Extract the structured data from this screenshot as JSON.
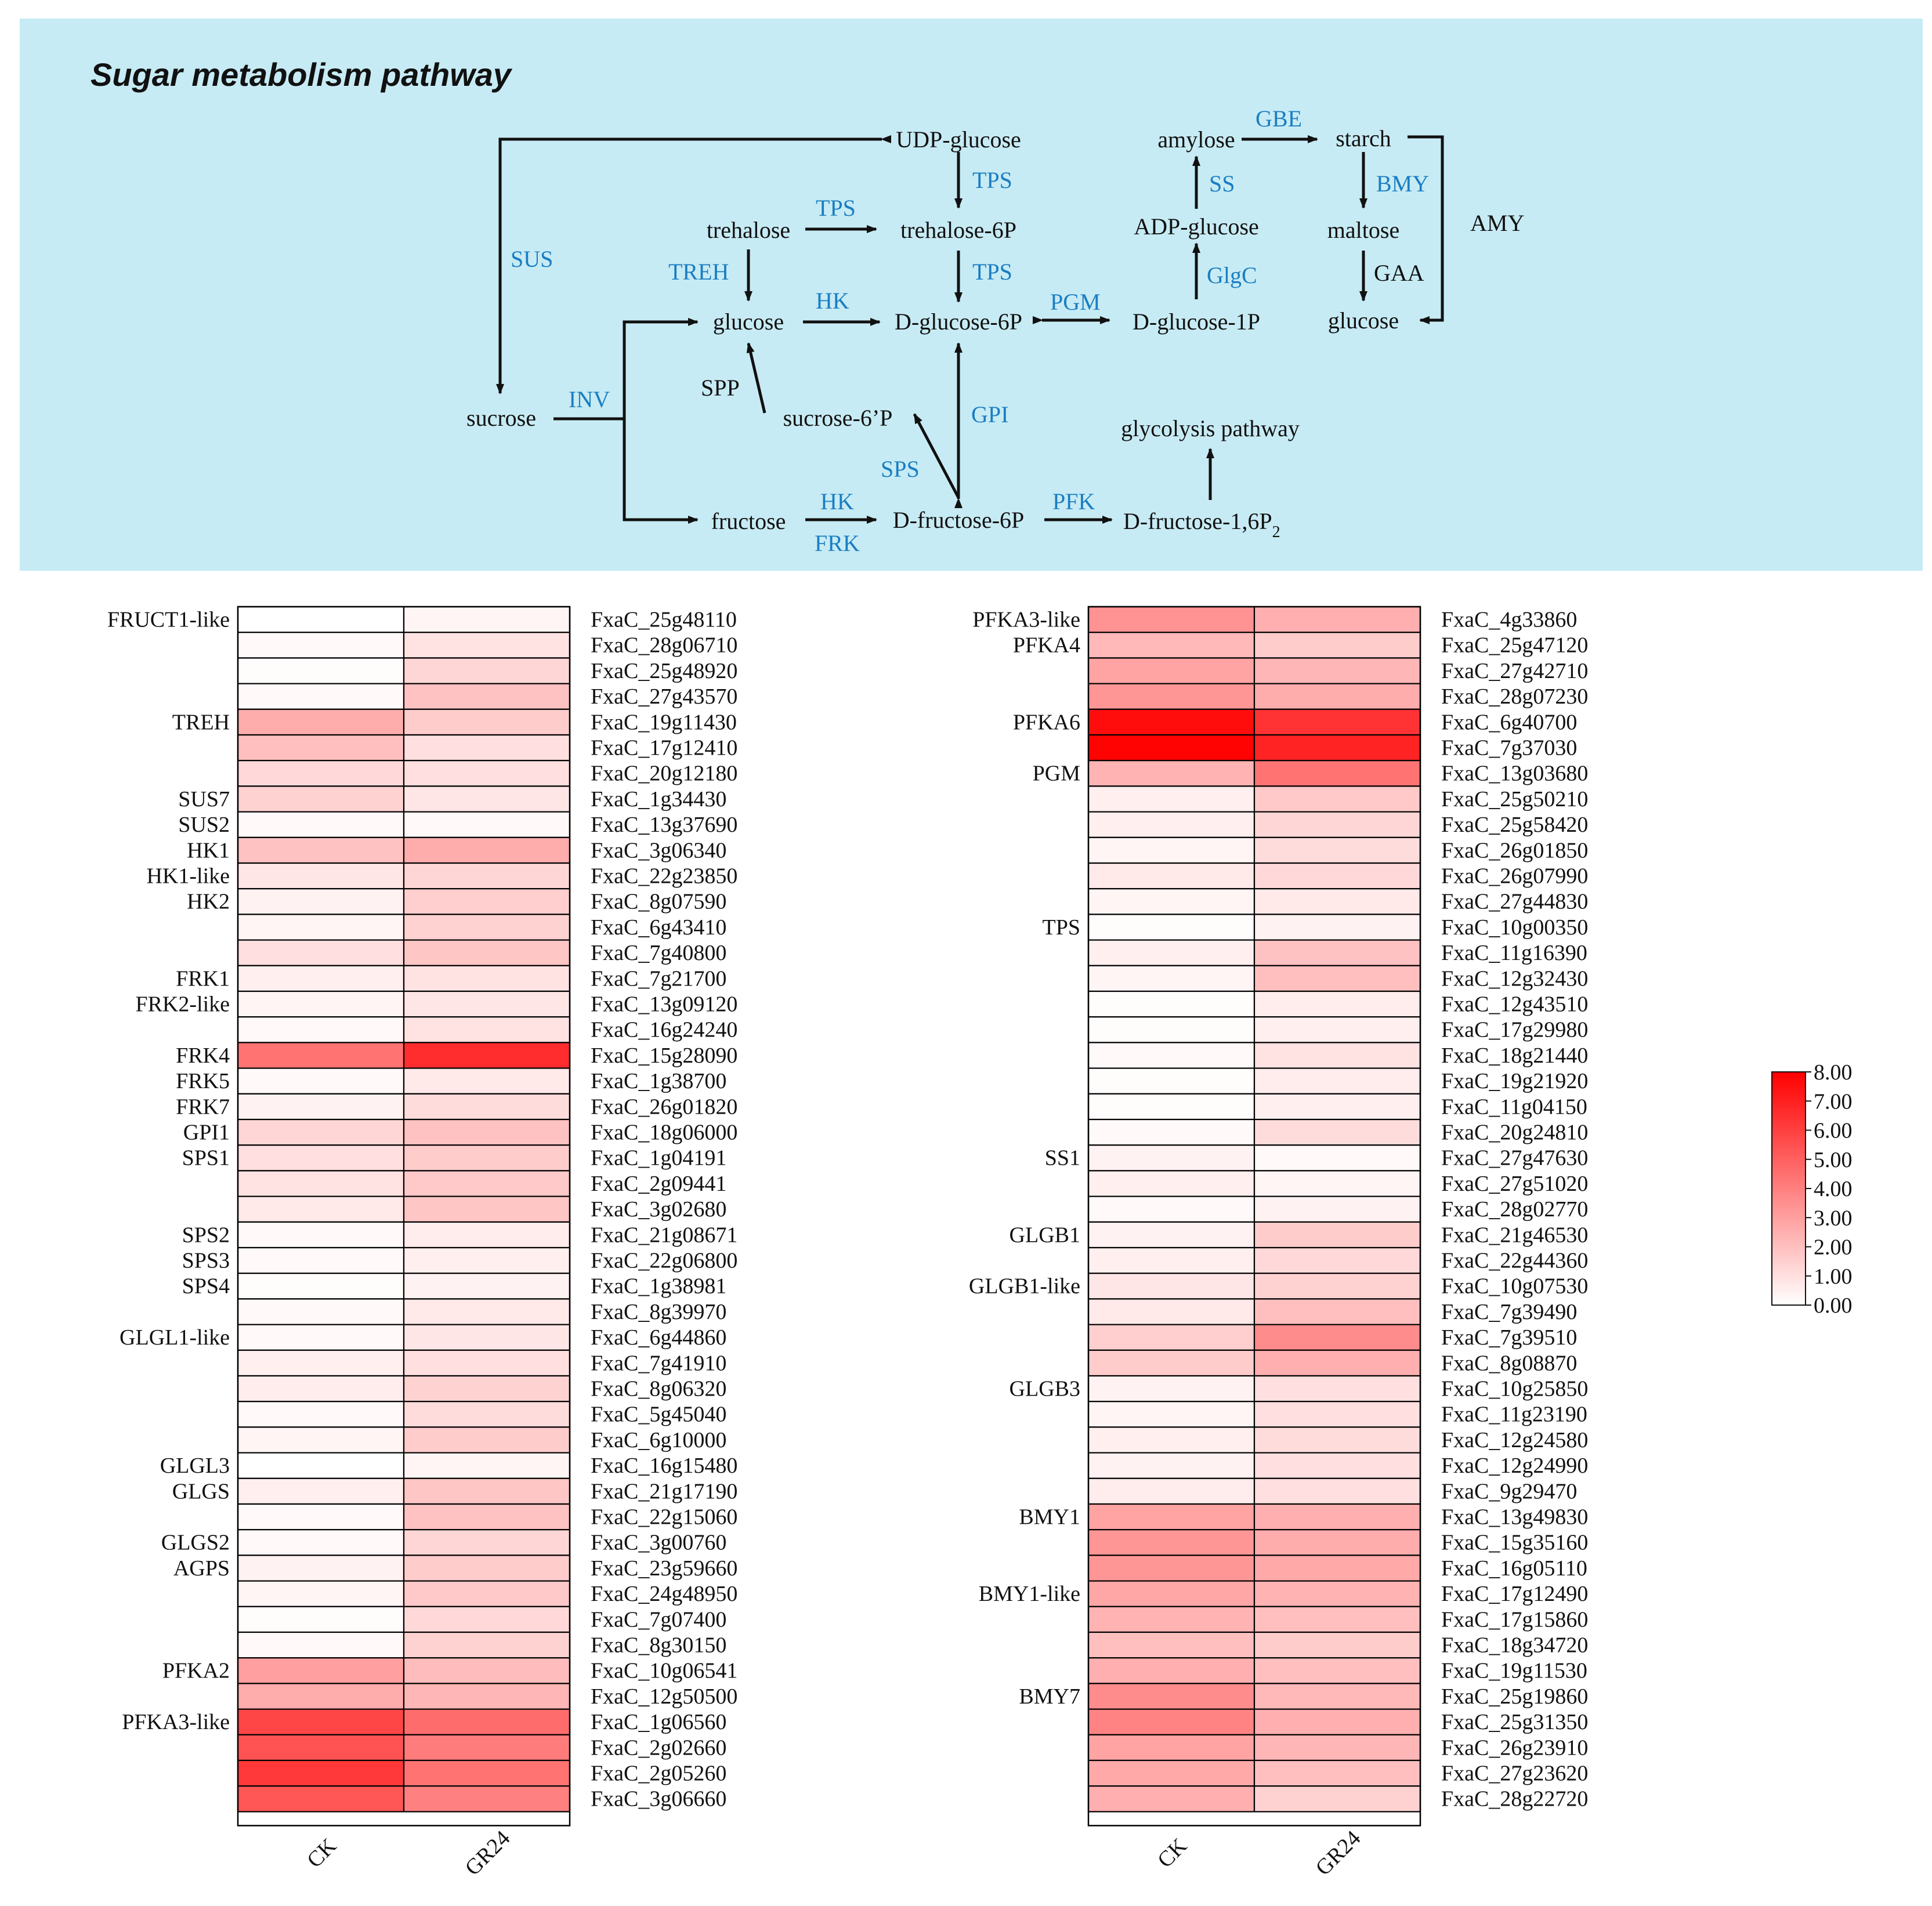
{
  "pathway": {
    "title": "Sugar metabolism pathway",
    "background": "#c7ebf4",
    "nodes": {
      "udp_glucose": "UDP-glucose",
      "trehalose": "trehalose",
      "trehalose_6p": "trehalose-6P",
      "glucose": "glucose",
      "d_glucose_6p": "D-glucose-6P",
      "d_glucose_1p": "D-glucose-1P",
      "adp_glucose": "ADP-glucose",
      "amylose": "amylose",
      "starch": "starch",
      "maltose": "maltose",
      "glucose2": "glucose",
      "sucrose": "sucrose",
      "sucrose_6p": "sucrose-6’P",
      "fructose": "fructose",
      "d_fructose_6p": "D-fructose-6P",
      "d_fructose_16p2": "D-fructose-1,6P",
      "d_fructose_16p2_sub": "2",
      "glycolysis": "glycolysis pathway"
    },
    "enzymes": {
      "sus": "SUS",
      "tps1": "TPS",
      "tps2": "TPS",
      "tps3": "TPS",
      "treh": "TREH",
      "hk1": "HK",
      "pgm": "PGM",
      "glgc": "GlgC",
      "ss": "SS",
      "gbe": "GBE",
      "bmy": "BMY",
      "inv": "INV",
      "gpi": "GPI",
      "sps": "SPS",
      "hk2": "HK",
      "frk": "FRK",
      "pfk": "PFK"
    },
    "other_labels": {
      "spp": "SPP",
      "gaa": "GAA",
      "amy": "AMY"
    }
  },
  "heatmap": {
    "columns": [
      "CK",
      "GR24"
    ],
    "color_min": "#ffffff",
    "color_max": "#ff0000",
    "scale": {
      "min": 0,
      "max": 8,
      "ticks": [
        "8.00",
        "7.00",
        "6.00",
        "5.00",
        "4.00",
        "3.00",
        "2.00",
        "1.00",
        "0.00"
      ]
    },
    "left": [
      {
        "group": "FRUCT1-like",
        "gene": "FxaC_25g48110",
        "values": [
          0.0,
          0.3
        ]
      },
      {
        "group": "",
        "gene": "FxaC_28g06710",
        "values": [
          0.2,
          0.9
        ]
      },
      {
        "group": "",
        "gene": "FxaC_25g48920",
        "values": [
          0.1,
          1.3
        ]
      },
      {
        "group": "",
        "gene": "FxaC_27g43570",
        "values": [
          0.2,
          1.9
        ]
      },
      {
        "group": "TREH",
        "gene": "FxaC_19g11430",
        "values": [
          2.6,
          1.6
        ]
      },
      {
        "group": "",
        "gene": "FxaC_17g12410",
        "values": [
          2.0,
          1.0
        ]
      },
      {
        "group": "",
        "gene": "FxaC_20g12180",
        "values": [
          1.2,
          1.0
        ]
      },
      {
        "group": "SUS7",
        "gene": "FxaC_1g34430",
        "values": [
          1.4,
          0.8
        ]
      },
      {
        "group": "SUS2",
        "gene": "FxaC_13g37690",
        "values": [
          0.2,
          0.2
        ]
      },
      {
        "group": "HK1",
        "gene": "FxaC_3g06340",
        "values": [
          1.9,
          2.6
        ]
      },
      {
        "group": "HK1-like",
        "gene": "FxaC_22g23850",
        "values": [
          0.8,
          1.3
        ]
      },
      {
        "group": "HK2",
        "gene": "FxaC_8g07590",
        "values": [
          0.4,
          1.5
        ]
      },
      {
        "group": "",
        "gene": "FxaC_6g43410",
        "values": [
          0.3,
          1.4
        ]
      },
      {
        "group": "",
        "gene": "FxaC_7g40800",
        "values": [
          1.0,
          1.8
        ]
      },
      {
        "group": "FRK1",
        "gene": "FxaC_7g21700",
        "values": [
          0.5,
          0.9
        ]
      },
      {
        "group": "FRK2-like",
        "gene": "FxaC_13g09120",
        "values": [
          0.3,
          0.8
        ]
      },
      {
        "group": "",
        "gene": "FxaC_16g24240",
        "values": [
          0.2,
          0.9
        ]
      },
      {
        "group": "FRK4",
        "gene": "FxaC_15g28090",
        "values": [
          4.4,
          6.6
        ]
      },
      {
        "group": "FRK5",
        "gene": "FxaC_1g38700",
        "values": [
          0.2,
          0.7
        ]
      },
      {
        "group": "FRK7",
        "gene": "FxaC_26g01820",
        "values": [
          0.4,
          1.1
        ]
      },
      {
        "group": "GPI1",
        "gene": "FxaC_18g06000",
        "values": [
          1.3,
          1.9
        ]
      },
      {
        "group": "SPS1",
        "gene": "FxaC_1g04191",
        "values": [
          1.0,
          1.6
        ]
      },
      {
        "group": "",
        "gene": "FxaC_2g09441",
        "values": [
          0.9,
          1.7
        ]
      },
      {
        "group": "",
        "gene": "FxaC_3g02680",
        "values": [
          0.7,
          1.8
        ]
      },
      {
        "group": "SPS2",
        "gene": "FxaC_21g08671",
        "values": [
          0.2,
          0.6
        ]
      },
      {
        "group": "SPS3",
        "gene": "FxaC_22g06800",
        "values": [
          0.2,
          0.5
        ]
      },
      {
        "group": "SPS4",
        "gene": "FxaC_1g38981",
        "values": [
          0.1,
          0.4
        ]
      },
      {
        "group": "",
        "gene": "FxaC_8g39970",
        "values": [
          0.2,
          0.7
        ]
      },
      {
        "group": "GLGL1-like",
        "gene": "FxaC_6g44860",
        "values": [
          0.2,
          0.8
        ]
      },
      {
        "group": "",
        "gene": "FxaC_7g41910",
        "values": [
          0.5,
          1.0
        ]
      },
      {
        "group": "",
        "gene": "FxaC_8g06320",
        "values": [
          0.6,
          1.4
        ]
      },
      {
        "group": "",
        "gene": "FxaC_5g45040",
        "values": [
          0.2,
          1.1
        ]
      },
      {
        "group": "",
        "gene": "FxaC_6g10000",
        "values": [
          0.3,
          1.6
        ]
      },
      {
        "group": "GLGL3",
        "gene": "FxaC_16g15480",
        "values": [
          0.0,
          0.3
        ]
      },
      {
        "group": "GLGS",
        "gene": "FxaC_21g17190",
        "values": [
          0.5,
          1.8
        ]
      },
      {
        "group": "",
        "gene": "FxaC_22g15060",
        "values": [
          0.2,
          1.9
        ]
      },
      {
        "group": "GLGS2",
        "gene": "FxaC_3g00760",
        "values": [
          0.2,
          1.3
        ]
      },
      {
        "group": "AGPS",
        "gene": "FxaC_23g59660",
        "values": [
          0.4,
          1.6
        ]
      },
      {
        "group": "",
        "gene": "FxaC_24g48950",
        "values": [
          0.3,
          1.7
        ]
      },
      {
        "group": "",
        "gene": "FxaC_7g07400",
        "values": [
          0.1,
          1.2
        ]
      },
      {
        "group": "",
        "gene": "FxaC_8g30150",
        "values": [
          0.2,
          1.4
        ]
      },
      {
        "group": "PFKA2",
        "gene": "FxaC_10g06541",
        "values": [
          3.0,
          2.1
        ]
      },
      {
        "group": "",
        "gene": "FxaC_12g50500",
        "values": [
          2.6,
          2.3
        ]
      },
      {
        "group": "PFKA3-like",
        "gene": "FxaC_1g06560",
        "values": [
          5.8,
          4.6
        ]
      },
      {
        "group": "",
        "gene": "FxaC_2g02660",
        "values": [
          5.4,
          4.1
        ]
      },
      {
        "group": "",
        "gene": "FxaC_2g05260",
        "values": [
          6.2,
          4.4
        ]
      },
      {
        "group": "",
        "gene": "FxaC_3g06660",
        "values": [
          5.3,
          4.0
        ]
      }
    ],
    "right": [
      {
        "group": "PFKA3-like",
        "gene": "FxaC_4g33860",
        "values": [
          3.4,
          2.5
        ]
      },
      {
        "group": "PFKA4",
        "gene": "FxaC_25g47120",
        "values": [
          2.2,
          1.6
        ]
      },
      {
        "group": "",
        "gene": "FxaC_27g42710",
        "values": [
          2.9,
          2.3
        ]
      },
      {
        "group": "",
        "gene": "FxaC_28g07230",
        "values": [
          3.3,
          2.6
        ]
      },
      {
        "group": "PFKA6",
        "gene": "FxaC_6g40700",
        "values": [
          7.6,
          6.4
        ]
      },
      {
        "group": "",
        "gene": "FxaC_7g37030",
        "values": [
          7.9,
          6.9
        ]
      },
      {
        "group": "PGM",
        "gene": "FxaC_13g03680",
        "values": [
          2.4,
          4.4
        ]
      },
      {
        "group": "",
        "gene": "FxaC_25g50210",
        "values": [
          0.5,
          1.7
        ]
      },
      {
        "group": "",
        "gene": "FxaC_25g58420",
        "values": [
          0.5,
          1.3
        ]
      },
      {
        "group": "",
        "gene": "FxaC_26g01850",
        "values": [
          0.3,
          1.1
        ]
      },
      {
        "group": "",
        "gene": "FxaC_26g07990",
        "values": [
          0.7,
          1.2
        ]
      },
      {
        "group": "",
        "gene": "FxaC_27g44830",
        "values": [
          0.3,
          0.7
        ]
      },
      {
        "group": "TPS",
        "gene": "FxaC_10g00350",
        "values": [
          0.1,
          0.4
        ]
      },
      {
        "group": "",
        "gene": "FxaC_11g16390",
        "values": [
          0.5,
          1.9
        ]
      },
      {
        "group": "",
        "gene": "FxaC_12g32430",
        "values": [
          0.3,
          2.0
        ]
      },
      {
        "group": "",
        "gene": "FxaC_12g43510",
        "values": [
          0.1,
          0.6
        ]
      },
      {
        "group": "",
        "gene": "FxaC_17g29980",
        "values": [
          0.1,
          0.5
        ]
      },
      {
        "group": "",
        "gene": "FxaC_18g21440",
        "values": [
          0.2,
          0.9
        ]
      },
      {
        "group": "",
        "gene": "FxaC_19g21920",
        "values": [
          0.1,
          0.6
        ]
      },
      {
        "group": "",
        "gene": "FxaC_11g04150",
        "values": [
          0.1,
          0.5
        ]
      },
      {
        "group": "",
        "gene": "FxaC_20g24810",
        "values": [
          0.2,
          1.1
        ]
      },
      {
        "group": "SS1",
        "gene": "FxaC_27g47630",
        "values": [
          0.4,
          0.2
        ]
      },
      {
        "group": "",
        "gene": "FxaC_27g51020",
        "values": [
          0.5,
          0.3
        ]
      },
      {
        "group": "",
        "gene": "FxaC_28g02770",
        "values": [
          0.2,
          0.4
        ]
      },
      {
        "group": "GLGB1",
        "gene": "FxaC_21g46530",
        "values": [
          0.4,
          1.6
        ]
      },
      {
        "group": "",
        "gene": "FxaC_22g44360",
        "values": [
          0.5,
          1.2
        ]
      },
      {
        "group": "GLGB1-like",
        "gene": "FxaC_10g07530",
        "values": [
          0.8,
          1.4
        ]
      },
      {
        "group": "",
        "gene": "FxaC_7g39490",
        "values": [
          0.7,
          2.0
        ]
      },
      {
        "group": "",
        "gene": "FxaC_7g39510",
        "values": [
          1.5,
          3.6
        ]
      },
      {
        "group": "",
        "gene": "FxaC_8g08870",
        "values": [
          1.6,
          2.5
        ]
      },
      {
        "group": "GLGB3",
        "gene": "FxaC_10g25850",
        "values": [
          0.4,
          1.0
        ]
      },
      {
        "group": "",
        "gene": "FxaC_11g23190",
        "values": [
          0.3,
          1.0
        ]
      },
      {
        "group": "",
        "gene": "FxaC_12g24580",
        "values": [
          0.5,
          1.1
        ]
      },
      {
        "group": "",
        "gene": "FxaC_12g24990",
        "values": [
          0.4,
          1.0
        ]
      },
      {
        "group": "",
        "gene": "FxaC_9g29470",
        "values": [
          0.6,
          1.0
        ]
      },
      {
        "group": "BMY1",
        "gene": "FxaC_13g49830",
        "values": [
          2.9,
          2.5
        ]
      },
      {
        "group": "",
        "gene": "FxaC_15g35160",
        "values": [
          3.3,
          2.6
        ]
      },
      {
        "group": "",
        "gene": "FxaC_16g05110",
        "values": [
          3.3,
          2.7
        ]
      },
      {
        "group": "BMY1-like",
        "gene": "FxaC_17g12490",
        "values": [
          2.8,
          2.4
        ]
      },
      {
        "group": "",
        "gene": "FxaC_17g15860",
        "values": [
          2.4,
          2.0
        ]
      },
      {
        "group": "",
        "gene": "FxaC_18g34720",
        "values": [
          2.0,
          1.6
        ]
      },
      {
        "group": "",
        "gene": "FxaC_19g11530",
        "values": [
          2.5,
          2.0
        ]
      },
      {
        "group": "BMY7",
        "gene": "FxaC_25g19860",
        "values": [
          3.6,
          2.2
        ]
      },
      {
        "group": "",
        "gene": "FxaC_25g31350",
        "values": [
          3.9,
          2.5
        ]
      },
      {
        "group": "",
        "gene": "FxaC_26g23910",
        "values": [
          2.9,
          2.3
        ]
      },
      {
        "group": "",
        "gene": "FxaC_27g23620",
        "values": [
          2.7,
          2.0
        ]
      },
      {
        "group": "",
        "gene": "FxaC_28g22720",
        "values": [
          2.5,
          1.4
        ]
      }
    ]
  }
}
